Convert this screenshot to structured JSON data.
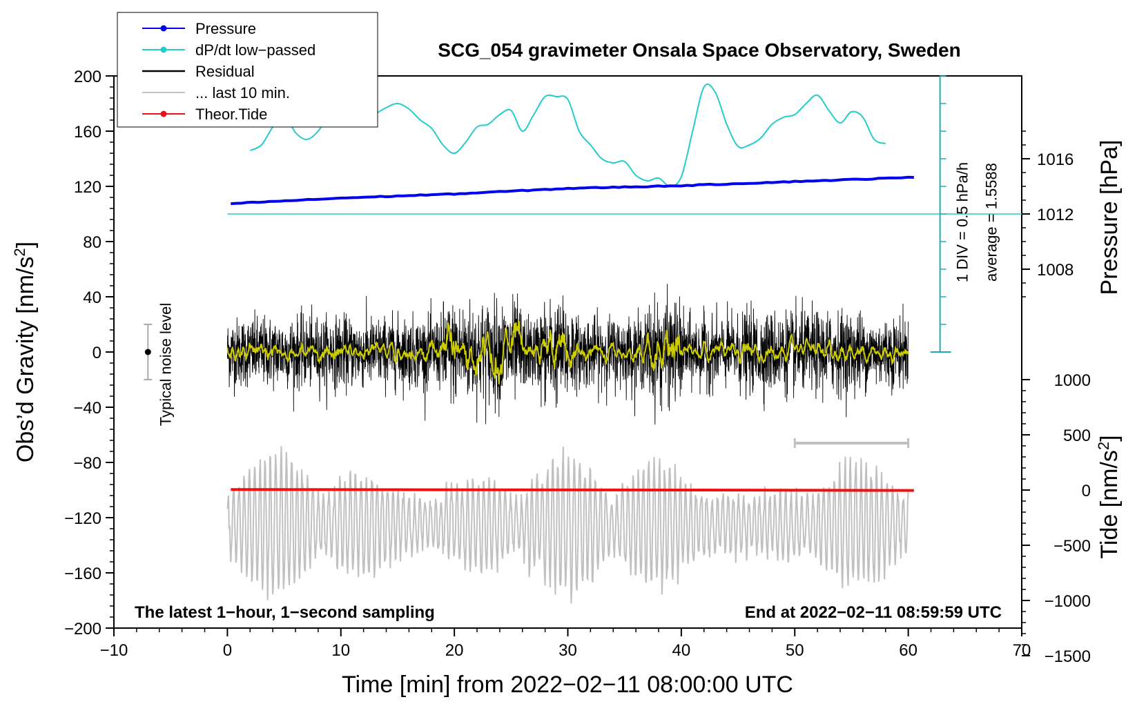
{
  "chart_data": {
    "type": "line",
    "title": "SCG_054 gravimeter Onsala Space Observatory, Sweden",
    "xlabel": "Time [min] from 2022−02−11 08:00:00 UTC",
    "ylabel_left": "Obs’d Gravity [nm/s²]",
    "ylabel_pressure": "Pressure [hPa]",
    "ylabel_tide": "Tide [nm/s²]",
    "xlim": [
      -10,
      70
    ],
    "ylim": [
      -200,
      200
    ],
    "x_ticks": [
      "−10",
      "0",
      "10",
      "20",
      "30",
      "40",
      "50",
      "60",
      "70"
    ],
    "x_tick_values": [
      -10,
      0,
      10,
      20,
      30,
      40,
      50,
      60,
      70
    ],
    "y_ticks": [
      "200",
      "160",
      "120",
      "80",
      "40",
      "0",
      "−40",
      "−80",
      "−120",
      "−160",
      "−200"
    ],
    "y_tick_values": [
      200,
      160,
      120,
      80,
      40,
      0,
      -40,
      -80,
      -120,
      -160,
      -200
    ],
    "pressure_ticks": [
      "1016",
      "1012",
      "1008"
    ],
    "pressure_tick_values": [
      1016,
      1012,
      1008
    ],
    "pressure_axis": {
      "value_1012_at_gravity": 100,
      "hpa_per_nm": 0.1
    },
    "tide_ticks": [
      "1000",
      "500",
      "0",
      "−500",
      "−1000",
      "−1500"
    ],
    "tide_tick_values": [
      1000,
      500,
      0,
      -500,
      -1000,
      -1500
    ],
    "tide_axis": {
      "zero_at_gravity": -100,
      "nm_per_nm": 12.5
    },
    "legend": [
      {
        "label": "Pressure",
        "color": "#0000ee",
        "marker": true
      },
      {
        "label": "dP/dt low−passed",
        "color": "#22cccc",
        "marker": true
      },
      {
        "label": "Residual",
        "color": "#000000",
        "marker": false
      },
      {
        "label": "... last 10 min.",
        "color": "#c0c0c0",
        "marker": false
      },
      {
        "label": "Theor.Tide",
        "color": "#ee1111",
        "marker": true
      }
    ],
    "dpdt_scale": {
      "label_div": "1 DIV = 0.5 hPa/h",
      "label_avg": "average = 1.5588",
      "x": 62.8,
      "baseline_y": 0,
      "top_y": 200,
      "div_count": 10
    },
    "noise_bar": {
      "label": "Typical noise level",
      "x": -7,
      "center": 0,
      "half_range": 20
    },
    "last10_bar": {
      "x_start": 50,
      "x_end": 60,
      "y": -66
    },
    "footer_left": "The latest 1−hour, 1−second sampling",
    "footer_right": "End at 2022−02−11 08:59:59 UTC",
    "pressure_series": {
      "name": "Pressure",
      "x": [
        0.3,
        10,
        20,
        30,
        40,
        50,
        60.5
      ],
      "y": [
        107.5,
        111.5,
        114.5,
        118.5,
        120.5,
        123.5,
        126.5
      ]
    },
    "dpdt_reference_line_y": 100,
    "dpdt_series": {
      "name": "dP/dt low-passed",
      "x": [
        2,
        3,
        4,
        5,
        6,
        7,
        8,
        9,
        10,
        11,
        12,
        13,
        14,
        15,
        16,
        17,
        18,
        19,
        20,
        21,
        22,
        23,
        24,
        25,
        26,
        27,
        28,
        29,
        30,
        31,
        32,
        33,
        34,
        35,
        36,
        37,
        38,
        39,
        40,
        41,
        42,
        43,
        44,
        45,
        46,
        47,
        48,
        49,
        50,
        51,
        52,
        53,
        54,
        55,
        56,
        57,
        58
      ],
      "y": [
        146,
        150,
        163,
        172,
        159,
        154,
        160,
        172,
        175,
        168,
        164,
        172,
        177,
        180,
        176,
        168,
        162,
        150,
        144,
        152,
        163,
        165,
        172,
        175,
        160,
        172,
        185,
        185,
        183,
        160,
        150,
        140,
        137,
        138,
        128,
        124,
        126,
        120,
        127,
        160,
        192,
        188,
        165,
        149,
        150,
        155,
        165,
        170,
        172,
        180,
        186,
        175,
        166,
        174,
        170,
        154,
        151
      ]
    },
    "theor_tide_series": {
      "name": "Theor.Tide",
      "x": [
        0.3,
        20,
        40,
        60.5
      ],
      "y": [
        -99.6,
        -99.8,
        -100.0,
        -100.3
      ]
    },
    "residual_series": {
      "name": "Residual",
      "x_start": 0,
      "x_end": 60,
      "typical_amplitude": 30,
      "burst_windows": [
        [
          19,
          26
        ],
        [
          27.5,
          30.5
        ],
        [
          37,
          40
        ]
      ]
    },
    "residual_smooth_series": {
      "name": "Residual (smoothed)",
      "color": "#cccc00",
      "x_start": 0,
      "x_end": 60
    },
    "last10_series": {
      "name": "... last 10 min.",
      "x_start": 0,
      "x_end": 60,
      "center": -125,
      "typical_amplitude": 20,
      "max_amplitude": 55
    }
  }
}
